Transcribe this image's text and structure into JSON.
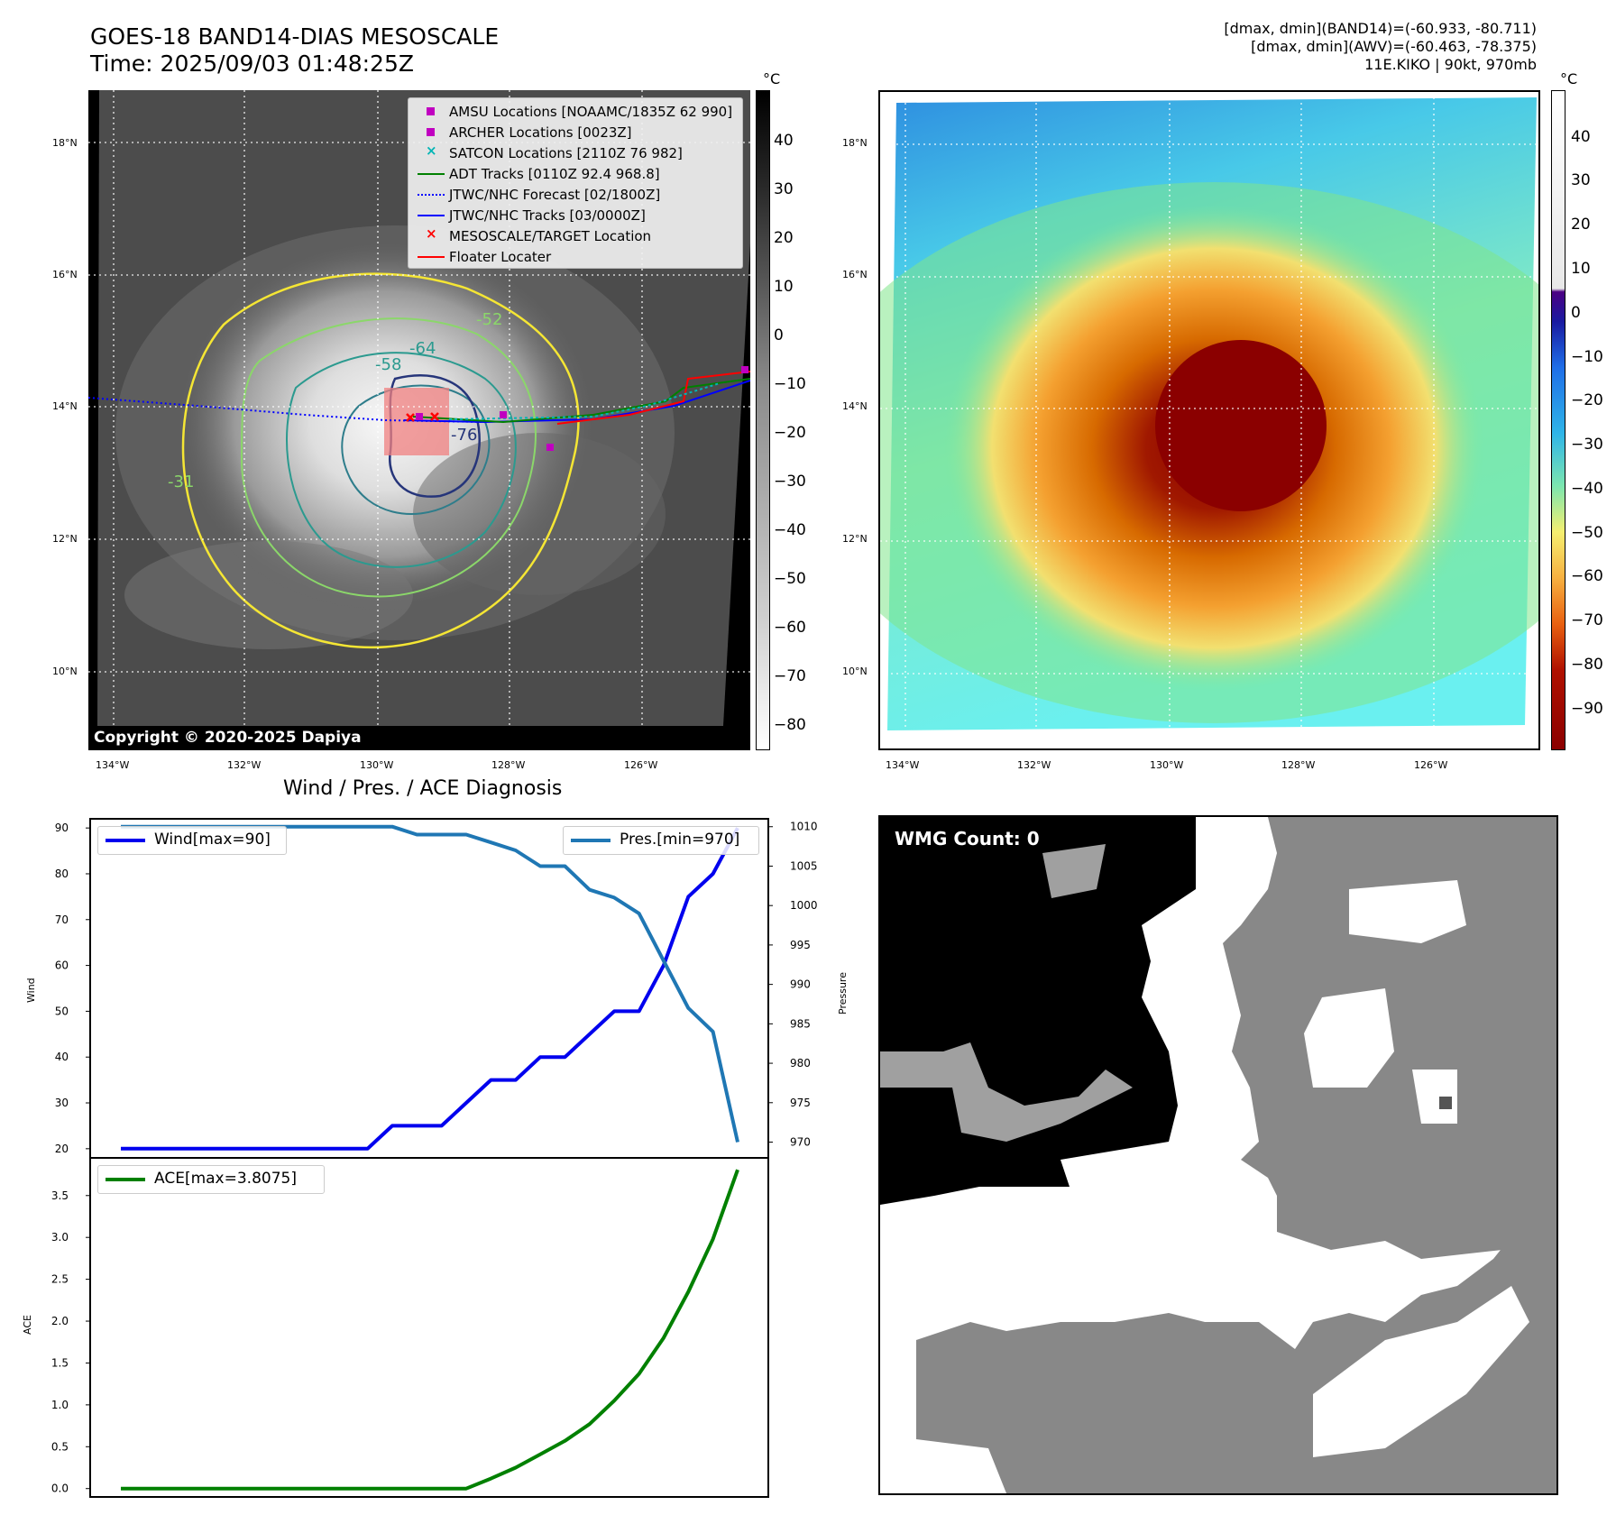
{
  "header": {
    "title_line1": "GOES-18 BAND14-DIAS MESOSCALE",
    "title_line2": "Time: 2025/09/03 01:48:25Z",
    "stats_line1": "[dmax, dmin](BAND14)=(-60.933, -80.711)",
    "stats_line2": "[dmax, dmin](AWV)=(-60.463, -78.375)",
    "stats_line3": "11E.KIKO | 90kt, 970mb"
  },
  "map": {
    "lat_ticks": [
      "18°N",
      "16°N",
      "14°N",
      "12°N",
      "10°N"
    ],
    "lon_ticks": [
      "134°W",
      "132°W",
      "130°W",
      "128°W",
      "126°W"
    ],
    "copyright": "Copyright © 2020-2025 Dapiya",
    "contour_labels": [
      "-64",
      "-58",
      "-52",
      "-76",
      "-31"
    ],
    "legend": [
      {
        "label": "AMSU Locations [NOAAMC/1835Z 62 990]",
        "color": "#c000c0"
      },
      {
        "label": "ARCHER Locations [0023Z]",
        "color": "#c000c0"
      },
      {
        "label": "SATCON Locations [2110Z 76 982]",
        "color": "#00b5b5"
      },
      {
        "label": "ADT Tracks [0110Z 92.4 968.8]",
        "color": "#008000"
      },
      {
        "label": "JTWC/NHC Forecast [02/1800Z]",
        "color": "#0000ff"
      },
      {
        "label": "JTWC/NHC Tracks [03/0000Z]",
        "color": "#0000ff"
      },
      {
        "label": "MESOSCALE/TARGET Location",
        "color": "#ff0000"
      },
      {
        "label": "Floater Locater",
        "color": "#ff0000"
      }
    ]
  },
  "colorbars": {
    "unit": "°C",
    "left_ticks": [
      "40",
      "30",
      "20",
      "10",
      "0",
      "−10",
      "−20",
      "−30",
      "−40",
      "−50",
      "−60",
      "−70",
      "−80"
    ],
    "right_ticks": [
      "40",
      "30",
      "20",
      "10",
      "0",
      "−10",
      "−20",
      "−30",
      "−40",
      "−50",
      "−60",
      "−70",
      "−80",
      "−90"
    ]
  },
  "diagnosis": {
    "title": "Wind / Pres. / ACE Diagnosis",
    "wind_label": "Wind",
    "pressure_label": "Pressure",
    "ace_label": "ACE",
    "wind_legend": "Wind[max=90]",
    "pres_legend": "Pres.[min=970]",
    "ace_legend": "ACE[max=3.8075]",
    "wind_ticks": [
      "90",
      "80",
      "70",
      "60",
      "50",
      "40",
      "30",
      "20"
    ],
    "pres_ticks": [
      "1010",
      "1005",
      "1000",
      "995",
      "990",
      "985",
      "980",
      "975",
      "970"
    ],
    "ace_ticks": [
      "3.5",
      "3.0",
      "2.5",
      "2.0",
      "1.5",
      "1.0",
      "0.5",
      "0.0"
    ]
  },
  "wmg": {
    "label": "WMG Count: 0"
  },
  "chart_data": {
    "type": "line",
    "x": [
      0,
      1,
      2,
      3,
      4,
      5,
      6,
      7,
      8,
      9,
      10,
      11,
      12,
      13,
      14,
      15,
      16,
      17,
      18,
      19,
      20,
      21,
      22,
      23,
      24,
      25
    ],
    "series": [
      {
        "name": "Wind[max=90]",
        "axis": "Wind",
        "color": "#0000ee",
        "values": [
          20,
          20,
          20,
          20,
          20,
          20,
          20,
          20,
          20,
          20,
          20,
          25,
          25,
          25,
          30,
          35,
          35,
          40,
          40,
          45,
          50,
          50,
          60,
          75,
          80,
          90
        ]
      },
      {
        "name": "Pres.[min=970]",
        "axis": "Pressure",
        "color": "#1f77b4",
        "values": [
          1010,
          1010,
          1010,
          1010,
          1010,
          1010,
          1010,
          1010,
          1010,
          1010,
          1010,
          1010,
          1009,
          1009,
          1009,
          1008,
          1007,
          1005,
          1005,
          1002,
          1001,
          999,
          993,
          987,
          984,
          970
        ]
      },
      {
        "name": "ACE[max=3.8075]",
        "axis": "ACE",
        "color": "#008000",
        "values": [
          0,
          0,
          0,
          0,
          0,
          0,
          0,
          0,
          0,
          0,
          0,
          0,
          0,
          0,
          0,
          0.12,
          0.25,
          0.41,
          0.57,
          0.77,
          1.05,
          1.37,
          1.8,
          2.35,
          2.98,
          3.8075
        ]
      }
    ],
    "ylim_wind": [
      18,
      92
    ],
    "ylim_pressure": [
      968,
      1011
    ],
    "ylim_ace": [
      -0.1,
      3.95
    ]
  }
}
